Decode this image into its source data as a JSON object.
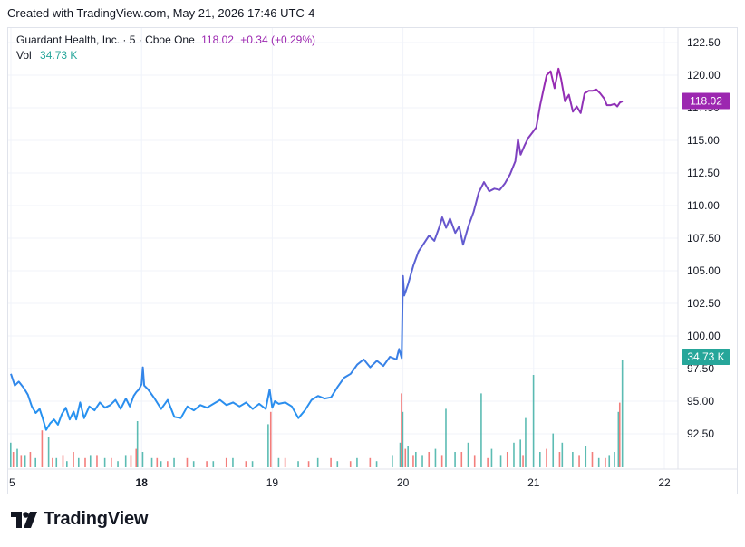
{
  "header": {
    "created_text": "Created with TradingView.com, May 21, 2026 17:46 UTC-4"
  },
  "legend": {
    "symbol": "Guardant Health, Inc. · 5 · Cboe One",
    "price": "118.02",
    "change": "+0.34 (+0.29%)",
    "vol_label": "Vol",
    "vol_value": "34.73 K"
  },
  "price_tag": "118.02",
  "volume_tag": "34.73 K",
  "brand": {
    "name": "TradingView"
  },
  "colors": {
    "line_start": "#2196f3",
    "line_end": "#9c27b0",
    "vol_up": "#26a69a",
    "vol_down": "#ef5350",
    "price_tag_bg": "#9c27b0",
    "volume_tag_bg": "#26a69a",
    "grid": "#f0f3fa"
  },
  "chart_data": {
    "type": "line",
    "title": "",
    "xlabel": "",
    "ylabel": "",
    "x_ticks": [
      "5",
      "18",
      "19",
      "20",
      "21",
      "22"
    ],
    "y_ticks": [
      "92.50",
      "95.00",
      "97.50",
      "100.00",
      "102.50",
      "105.00",
      "107.50",
      "110.00",
      "112.50",
      "115.00",
      "117.50",
      "120.00",
      "122.50"
    ],
    "ylim": [
      90.0,
      123.0
    ],
    "grid": true,
    "last_price": 118.02,
    "series": [
      {
        "points": [
          [
            0,
            97.1
          ],
          [
            0.03,
            96.2
          ],
          [
            0.06,
            96.5
          ],
          [
            0.1,
            96.0
          ],
          [
            0.13,
            95.5
          ],
          [
            0.16,
            94.6
          ],
          [
            0.19,
            94.1
          ],
          [
            0.22,
            94.4
          ],
          [
            0.24,
            93.8
          ],
          [
            0.27,
            92.8
          ],
          [
            0.3,
            93.3
          ],
          [
            0.33,
            93.6
          ],
          [
            0.36,
            93.2
          ],
          [
            0.39,
            94.0
          ],
          [
            0.42,
            94.5
          ],
          [
            0.45,
            93.6
          ],
          [
            0.48,
            94.2
          ],
          [
            0.5,
            93.6
          ],
          [
            0.53,
            94.9
          ],
          [
            0.56,
            93.7
          ],
          [
            0.6,
            94.6
          ],
          [
            0.64,
            94.3
          ],
          [
            0.68,
            94.9
          ],
          [
            0.72,
            94.5
          ],
          [
            0.76,
            94.7
          ],
          [
            0.8,
            95.1
          ],
          [
            0.84,
            94.4
          ],
          [
            0.88,
            95.2
          ],
          [
            0.91,
            94.6
          ],
          [
            0.94,
            95.4
          ],
          [
            0.96,
            95.7
          ],
          [
            0.98,
            95.9
          ],
          [
            1.0,
            96.3
          ],
          [
            1.01,
            97.6
          ],
          [
            1.02,
            96.2
          ],
          [
            1.05,
            95.9
          ],
          [
            1.1,
            95.2
          ],
          [
            1.15,
            94.4
          ],
          [
            1.2,
            95.1
          ],
          [
            1.25,
            93.8
          ],
          [
            1.3,
            93.7
          ],
          [
            1.35,
            94.6
          ],
          [
            1.4,
            94.3
          ],
          [
            1.45,
            94.7
          ],
          [
            1.5,
            94.5
          ],
          [
            1.55,
            94.8
          ],
          [
            1.6,
            95.1
          ],
          [
            1.65,
            94.7
          ],
          [
            1.7,
            94.9
          ],
          [
            1.75,
            94.6
          ],
          [
            1.8,
            94.9
          ],
          [
            1.85,
            94.4
          ],
          [
            1.9,
            94.8
          ],
          [
            1.95,
            94.4
          ],
          [
            1.98,
            95.9
          ],
          [
            2.0,
            94.5
          ],
          [
            2.02,
            95.0
          ],
          [
            2.05,
            94.8
          ],
          [
            2.1,
            94.9
          ],
          [
            2.15,
            94.6
          ],
          [
            2.2,
            93.7
          ],
          [
            2.25,
            94.3
          ],
          [
            2.3,
            95.1
          ],
          [
            2.35,
            95.4
          ],
          [
            2.4,
            95.2
          ],
          [
            2.45,
            95.3
          ],
          [
            2.5,
            96.1
          ],
          [
            2.55,
            96.8
          ],
          [
            2.6,
            97.1
          ],
          [
            2.65,
            97.8
          ],
          [
            2.7,
            98.2
          ],
          [
            2.75,
            97.6
          ],
          [
            2.8,
            98.1
          ],
          [
            2.85,
            97.7
          ],
          [
            2.9,
            98.4
          ],
          [
            2.95,
            98.2
          ],
          [
            2.97,
            99.0
          ],
          [
            2.99,
            98.3
          ],
          [
            3.0,
            104.6
          ],
          [
            3.01,
            103.1
          ],
          [
            3.04,
            104.0
          ],
          [
            3.08,
            105.4
          ],
          [
            3.12,
            106.5
          ],
          [
            3.16,
            107.1
          ],
          [
            3.2,
            107.7
          ],
          [
            3.24,
            107.3
          ],
          [
            3.28,
            108.4
          ],
          [
            3.3,
            109.1
          ],
          [
            3.33,
            108.3
          ],
          [
            3.36,
            109.0
          ],
          [
            3.4,
            107.9
          ],
          [
            3.43,
            108.4
          ],
          [
            3.46,
            107.0
          ],
          [
            3.5,
            108.4
          ],
          [
            3.54,
            109.5
          ],
          [
            3.58,
            111.0
          ],
          [
            3.62,
            111.8
          ],
          [
            3.66,
            111.1
          ],
          [
            3.7,
            111.3
          ],
          [
            3.74,
            111.2
          ],
          [
            3.78,
            111.7
          ],
          [
            3.82,
            112.4
          ],
          [
            3.86,
            113.4
          ],
          [
            3.88,
            115.1
          ],
          [
            3.9,
            113.9
          ],
          [
            3.93,
            114.6
          ],
          [
            3.96,
            115.2
          ],
          [
            3.99,
            115.6
          ],
          [
            4.02,
            116.0
          ],
          [
            4.05,
            117.7
          ],
          [
            4.08,
            119.1
          ],
          [
            4.1,
            120.0
          ],
          [
            4.13,
            120.3
          ],
          [
            4.16,
            119.0
          ],
          [
            4.19,
            120.5
          ],
          [
            4.21,
            119.7
          ],
          [
            4.24,
            118.0
          ],
          [
            4.27,
            118.5
          ],
          [
            4.3,
            117.2
          ],
          [
            4.33,
            117.6
          ],
          [
            4.36,
            117.1
          ],
          [
            4.39,
            118.6
          ],
          [
            4.42,
            118.8
          ],
          [
            4.45,
            118.8
          ],
          [
            4.48,
            118.9
          ],
          [
            4.51,
            118.6
          ],
          [
            4.54,
            118.2
          ],
          [
            4.56,
            117.7
          ],
          [
            4.59,
            117.7
          ],
          [
            4.62,
            117.8
          ],
          [
            4.64,
            117.6
          ],
          [
            4.66,
            117.9
          ],
          [
            4.68,
            118.0
          ]
        ]
      }
    ],
    "volume": [
      {
        "x": 0.0,
        "v": 8
      },
      {
        "x": 0.05,
        "v": 6
      },
      {
        "x": 0.11,
        "v": 4
      },
      {
        "x": 0.19,
        "v": 3
      },
      {
        "x": 0.29,
        "v": 10
      },
      {
        "x": 0.35,
        "v": 3
      },
      {
        "x": 0.43,
        "v": 2
      },
      {
        "x": 0.52,
        "v": 3
      },
      {
        "x": 0.61,
        "v": 4
      },
      {
        "x": 0.72,
        "v": 3
      },
      {
        "x": 0.82,
        "v": 2
      },
      {
        "x": 0.88,
        "v": 4
      },
      {
        "x": 0.97,
        "v": 15
      },
      {
        "x": 1.01,
        "v": 5
      },
      {
        "x": 1.08,
        "v": 3
      },
      {
        "x": 1.15,
        "v": 2
      },
      {
        "x": 1.25,
        "v": 3
      },
      {
        "x": 1.4,
        "v": 2
      },
      {
        "x": 1.55,
        "v": 2
      },
      {
        "x": 1.7,
        "v": 3
      },
      {
        "x": 1.85,
        "v": 2
      },
      {
        "x": 1.97,
        "v": 14
      },
      {
        "x": 2.05,
        "v": 3
      },
      {
        "x": 2.2,
        "v": 2
      },
      {
        "x": 2.35,
        "v": 3
      },
      {
        "x": 2.5,
        "v": 2
      },
      {
        "x": 2.65,
        "v": 3
      },
      {
        "x": 2.8,
        "v": 2
      },
      {
        "x": 2.92,
        "v": 4
      },
      {
        "x": 2.98,
        "v": 8
      },
      {
        "x": 3.0,
        "v": 18
      },
      {
        "x": 3.04,
        "v": 7
      },
      {
        "x": 3.1,
        "v": 5
      },
      {
        "x": 3.15,
        "v": 4
      },
      {
        "x": 3.25,
        "v": 6
      },
      {
        "x": 3.33,
        "v": 19
      },
      {
        "x": 3.4,
        "v": 5
      },
      {
        "x": 3.5,
        "v": 8
      },
      {
        "x": 3.6,
        "v": 24
      },
      {
        "x": 3.68,
        "v": 6
      },
      {
        "x": 3.75,
        "v": 4
      },
      {
        "x": 3.85,
        "v": 8
      },
      {
        "x": 3.9,
        "v": 9
      },
      {
        "x": 3.94,
        "v": 16
      },
      {
        "x": 4.0,
        "v": 30
      },
      {
        "x": 4.05,
        "v": 5
      },
      {
        "x": 4.15,
        "v": 11
      },
      {
        "x": 4.22,
        "v": 8
      },
      {
        "x": 4.3,
        "v": 5
      },
      {
        "x": 4.4,
        "v": 7
      },
      {
        "x": 4.5,
        "v": 3
      },
      {
        "x": 4.58,
        "v": 4
      },
      {
        "x": 4.62,
        "v": 5
      },
      {
        "x": 4.65,
        "v": 18
      },
      {
        "x": 4.68,
        "v": 35
      }
    ],
    "volume_down": [
      {
        "x": 0.02,
        "v": 5
      },
      {
        "x": 0.08,
        "v": 4
      },
      {
        "x": 0.15,
        "v": 5
      },
      {
        "x": 0.24,
        "v": 12
      },
      {
        "x": 0.32,
        "v": 3
      },
      {
        "x": 0.4,
        "v": 4
      },
      {
        "x": 0.48,
        "v": 5
      },
      {
        "x": 0.57,
        "v": 3
      },
      {
        "x": 0.66,
        "v": 4
      },
      {
        "x": 0.77,
        "v": 3
      },
      {
        "x": 0.92,
        "v": 4
      },
      {
        "x": 0.96,
        "v": 6
      },
      {
        "x": 1.12,
        "v": 3
      },
      {
        "x": 1.2,
        "v": 2
      },
      {
        "x": 1.35,
        "v": 3
      },
      {
        "x": 1.5,
        "v": 2
      },
      {
        "x": 1.65,
        "v": 3
      },
      {
        "x": 1.8,
        "v": 2
      },
      {
        "x": 1.99,
        "v": 18
      },
      {
        "x": 2.1,
        "v": 3
      },
      {
        "x": 2.28,
        "v": 2
      },
      {
        "x": 2.45,
        "v": 3
      },
      {
        "x": 2.6,
        "v": 2
      },
      {
        "x": 2.75,
        "v": 3
      },
      {
        "x": 2.99,
        "v": 24
      },
      {
        "x": 3.02,
        "v": 6
      },
      {
        "x": 3.08,
        "v": 4
      },
      {
        "x": 3.2,
        "v": 5
      },
      {
        "x": 3.3,
        "v": 4
      },
      {
        "x": 3.45,
        "v": 5
      },
      {
        "x": 3.55,
        "v": 4
      },
      {
        "x": 3.65,
        "v": 3
      },
      {
        "x": 3.8,
        "v": 5
      },
      {
        "x": 3.92,
        "v": 4
      },
      {
        "x": 4.1,
        "v": 6
      },
      {
        "x": 4.2,
        "v": 5
      },
      {
        "x": 4.35,
        "v": 4
      },
      {
        "x": 4.45,
        "v": 5
      },
      {
        "x": 4.55,
        "v": 3
      },
      {
        "x": 4.66,
        "v": 21
      }
    ]
  }
}
